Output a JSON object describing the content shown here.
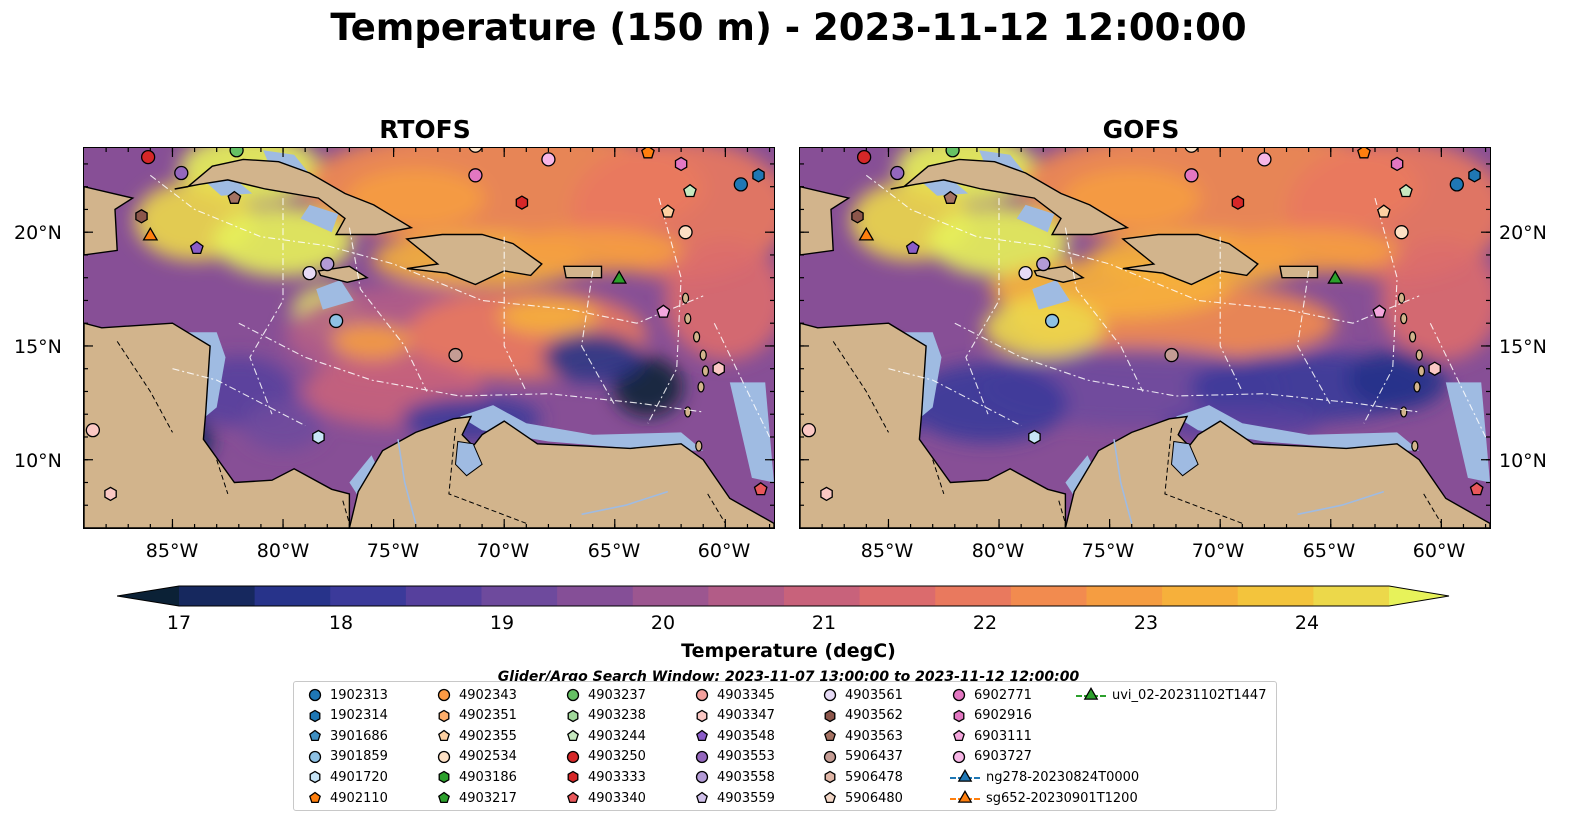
{
  "title": "Temperature (150 m) - 2023-11-12 12:00:00",
  "panels": [
    {
      "title": "RTOFS"
    },
    {
      "title": "GOFS"
    }
  ],
  "lat_labels": [
    "20°N",
    "15°N",
    "10°N"
  ],
  "lon_labels": [
    "85°W",
    "80°W",
    "75°W",
    "70°W",
    "65°W",
    "60°W"
  ],
  "colorbar": {
    "ticks": [
      "17",
      "18",
      "19",
      "20",
      "21",
      "22",
      "23",
      "24"
    ],
    "label": "Temperature (degC)",
    "colors": [
      "#0b2136",
      "#16285e",
      "#27338a",
      "#3b3a9a",
      "#56409d",
      "#6e4a9d",
      "#854f97",
      "#9c5690",
      "#b25c87",
      "#c8627b",
      "#db6b6d",
      "#e9795e",
      "#f28b4f",
      "#f59d41",
      "#f6b03b",
      "#f3c43c",
      "#ecd84a",
      "#e7f25a"
    ]
  },
  "search_note": "Glider/Argo Search Window: 2023-11-07 13:00:00 to 2023-11-12 12:00:00",
  "map_colors": {
    "land": "#d2b48c",
    "shelf": "#9fbbe2",
    "deep_cold": "#0b2136"
  },
  "legend": [
    {
      "label": "1902313",
      "marker": "circle",
      "color": "#1f77b4"
    },
    {
      "label": "1902314",
      "marker": "hexagon",
      "color": "#1f77b4"
    },
    {
      "label": "3901686",
      "marker": "pentagon",
      "color": "#3f8fc2"
    },
    {
      "label": "3901859",
      "marker": "circle",
      "color": "#8ec1e4"
    },
    {
      "label": "4901720",
      "marker": "hexagon",
      "color": "#c7e4f6"
    },
    {
      "label": "4902110",
      "marker": "pentagon",
      "color": "#ff7f0e"
    },
    {
      "label": "4902343",
      "marker": "circle",
      "color": "#fd9a44"
    },
    {
      "label": "4902351",
      "marker": "hexagon",
      "color": "#fdae6b"
    },
    {
      "label": "4902355",
      "marker": "pentagon",
      "color": "#fdd0a2"
    },
    {
      "label": "4902534",
      "marker": "circle",
      "color": "#fde0c5"
    },
    {
      "label": "4903186",
      "marker": "hexagon",
      "color": "#2ca02c"
    },
    {
      "label": "4903217",
      "marker": "pentagon",
      "color": "#2ca02c"
    },
    {
      "label": "4903237",
      "marker": "circle",
      "color": "#66c164"
    },
    {
      "label": "4903238",
      "marker": "hexagon",
      "color": "#a1d99b"
    },
    {
      "label": "4903244",
      "marker": "pentagon",
      "color": "#c7e9c0"
    },
    {
      "label": "4903250",
      "marker": "circle",
      "color": "#d62728"
    },
    {
      "label": "4903333",
      "marker": "hexagon",
      "color": "#d62728"
    },
    {
      "label": "4903340",
      "marker": "pentagon",
      "color": "#e8575a"
    },
    {
      "label": "4903345",
      "marker": "circle",
      "color": "#f4a09d"
    },
    {
      "label": "4903347",
      "marker": "hexagon",
      "color": "#fbc8c4"
    },
    {
      "label": "4903548",
      "marker": "pentagon",
      "color": "#8a5cc8"
    },
    {
      "label": "4903553",
      "marker": "circle",
      "color": "#9467bd"
    },
    {
      "label": "4903558",
      "marker": "circle",
      "color": "#b39bd6"
    },
    {
      "label": "4903559",
      "marker": "pentagon",
      "color": "#d0c0ea"
    },
    {
      "label": "4903561",
      "marker": "circle",
      "color": "#e6daf5"
    },
    {
      "label": "4903562",
      "marker": "hexagon",
      "color": "#8c564b"
    },
    {
      "label": "4903563",
      "marker": "pentagon",
      "color": "#a57262"
    },
    {
      "label": "5906437",
      "marker": "circle",
      "color": "#c49c94"
    },
    {
      "label": "5906478",
      "marker": "hexagon",
      "color": "#e0b6a6"
    },
    {
      "label": "5906480",
      "marker": "pentagon",
      "color": "#f2d6c6"
    },
    {
      "label": "6902771",
      "marker": "circle",
      "color": "#e377c2"
    },
    {
      "label": "6902916",
      "marker": "hexagon",
      "color": "#e377c2"
    },
    {
      "label": "6903111",
      "marker": "pentagon",
      "color": "#f4a6dd"
    },
    {
      "label": "6903727",
      "marker": "circle",
      "color": "#f7b6e6"
    },
    {
      "label": "ng278-20230824T0000",
      "marker": "triangle-line",
      "color": "#1f77b4"
    },
    {
      "label": "sg652-20230901T1200",
      "marker": "triangle-line",
      "color": "#ff7f0e"
    },
    {
      "label": "uvi_02-20231102T1447",
      "marker": "triangle-line",
      "color": "#2ca02c"
    }
  ],
  "map_markers": [
    {
      "lon": -86.1,
      "lat": 23.3,
      "marker": "circle",
      "color": "#d62728"
    },
    {
      "lon": -84.6,
      "lat": 22.6,
      "marker": "circle",
      "color": "#9467bd"
    },
    {
      "lon": -82.1,
      "lat": 23.6,
      "marker": "circle",
      "color": "#66c164"
    },
    {
      "lon": -82.2,
      "lat": 21.5,
      "marker": "pentagon",
      "color": "#a57262"
    },
    {
      "lon": -86.4,
      "lat": 20.7,
      "marker": "hexagon",
      "color": "#8c564b"
    },
    {
      "lon": -86.0,
      "lat": 19.9,
      "marker": "triangle",
      "color": "#ff7f0e"
    },
    {
      "lon": -83.9,
      "lat": 19.3,
      "marker": "pentagon",
      "color": "#8a5cc8"
    },
    {
      "lon": -78.8,
      "lat": 18.2,
      "marker": "circle",
      "color": "#e6daf5"
    },
    {
      "lon": -78.0,
      "lat": 18.6,
      "marker": "circle",
      "color": "#b39bd6"
    },
    {
      "lon": -77.6,
      "lat": 16.1,
      "marker": "circle",
      "color": "#8ec1e4"
    },
    {
      "lon": -71.3,
      "lat": 23.8,
      "marker": "circle",
      "color": "#fde0c5"
    },
    {
      "lon": -71.3,
      "lat": 22.5,
      "marker": "circle",
      "color": "#e377c2"
    },
    {
      "lon": -68.0,
      "lat": 23.2,
      "marker": "circle",
      "color": "#f7b6e6"
    },
    {
      "lon": -69.2,
      "lat": 21.3,
      "marker": "hexagon",
      "color": "#d62728"
    },
    {
      "lon": -63.5,
      "lat": 23.5,
      "marker": "pentagon",
      "color": "#ff7f0e"
    },
    {
      "lon": -62.0,
      "lat": 23.0,
      "marker": "hexagon",
      "color": "#e377c2"
    },
    {
      "lon": -61.6,
      "lat": 21.8,
      "marker": "pentagon",
      "color": "#c7e9c0"
    },
    {
      "lon": -62.6,
      "lat": 20.9,
      "marker": "pentagon",
      "color": "#fdd0a2"
    },
    {
      "lon": -61.8,
      "lat": 20.0,
      "marker": "circle",
      "color": "#fde0c5"
    },
    {
      "lon": -59.3,
      "lat": 22.1,
      "marker": "circle",
      "color": "#1f77b4"
    },
    {
      "lon": -58.5,
      "lat": 22.5,
      "marker": "hexagon",
      "color": "#1f77b4"
    },
    {
      "lon": -64.8,
      "lat": 18.0,
      "marker": "triangle",
      "color": "#2ca02c"
    },
    {
      "lon": -62.8,
      "lat": 16.5,
      "marker": "pentagon",
      "color": "#f4a6dd"
    },
    {
      "lon": -72.2,
      "lat": 14.6,
      "marker": "circle",
      "color": "#c49c94"
    },
    {
      "lon": -60.3,
      "lat": 14.0,
      "marker": "hexagon",
      "color": "#fbc8c4"
    },
    {
      "lon": -78.4,
      "lat": 11.0,
      "marker": "hexagon",
      "color": "#c7e4f6"
    },
    {
      "lon": -88.6,
      "lat": 11.3,
      "marker": "circle",
      "color": "#fbc8c4"
    },
    {
      "lon": -87.8,
      "lat": 8.5,
      "marker": "hexagon",
      "color": "#fbc8c4"
    },
    {
      "lon": -58.4,
      "lat": 8.7,
      "marker": "pentagon",
      "color": "#e8575a"
    }
  ]
}
